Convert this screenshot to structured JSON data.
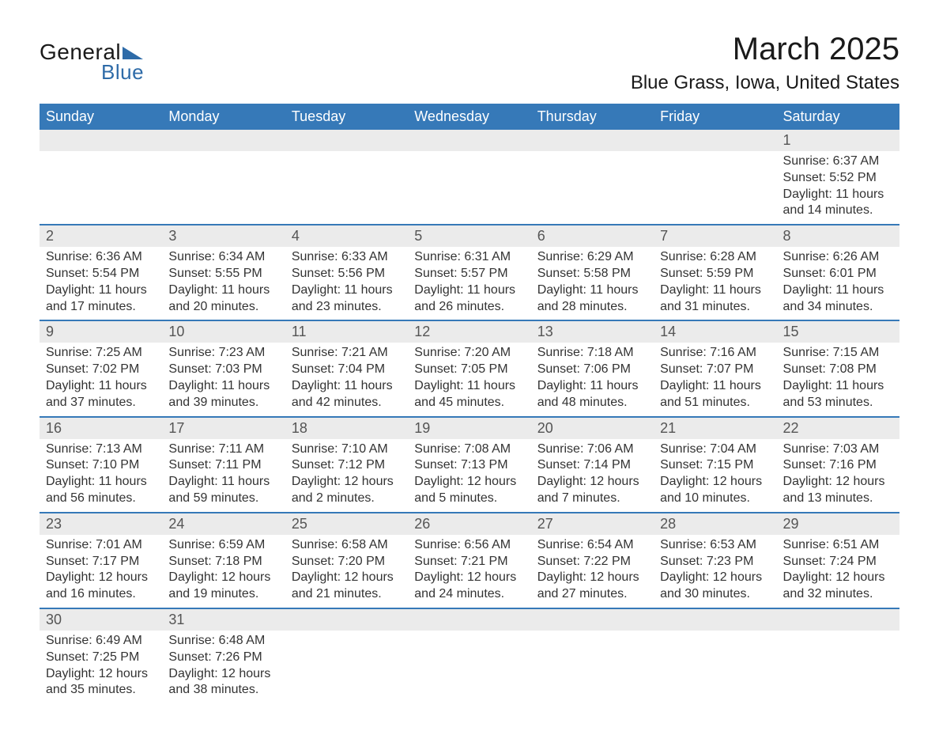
{
  "brand": {
    "general": "General",
    "blue": "Blue"
  },
  "title": "March 2025",
  "location": "Blue Grass, Iowa, United States",
  "colors": {
    "header_bg": "#3679b8",
    "header_text": "#ffffff",
    "row_divider": "#3679b8",
    "daynum_bg": "#ebebeb",
    "body_text": "#333333",
    "brand_blue": "#2e6ba8"
  },
  "typography": {
    "title_fontsize": 40,
    "location_fontsize": 24,
    "header_fontsize": 18,
    "daynum_fontsize": 18,
    "body_fontsize": 16
  },
  "days_of_week": [
    "Sunday",
    "Monday",
    "Tuesday",
    "Wednesday",
    "Thursday",
    "Friday",
    "Saturday"
  ],
  "first_weekday_index": 6,
  "days": [
    {
      "n": 1,
      "sunrise": "6:37 AM",
      "sunset": "5:52 PM",
      "daylight": "11 hours and 14 minutes."
    },
    {
      "n": 2,
      "sunrise": "6:36 AM",
      "sunset": "5:54 PM",
      "daylight": "11 hours and 17 minutes."
    },
    {
      "n": 3,
      "sunrise": "6:34 AM",
      "sunset": "5:55 PM",
      "daylight": "11 hours and 20 minutes."
    },
    {
      "n": 4,
      "sunrise": "6:33 AM",
      "sunset": "5:56 PM",
      "daylight": "11 hours and 23 minutes."
    },
    {
      "n": 5,
      "sunrise": "6:31 AM",
      "sunset": "5:57 PM",
      "daylight": "11 hours and 26 minutes."
    },
    {
      "n": 6,
      "sunrise": "6:29 AM",
      "sunset": "5:58 PM",
      "daylight": "11 hours and 28 minutes."
    },
    {
      "n": 7,
      "sunrise": "6:28 AM",
      "sunset": "5:59 PM",
      "daylight": "11 hours and 31 minutes."
    },
    {
      "n": 8,
      "sunrise": "6:26 AM",
      "sunset": "6:01 PM",
      "daylight": "11 hours and 34 minutes."
    },
    {
      "n": 9,
      "sunrise": "7:25 AM",
      "sunset": "7:02 PM",
      "daylight": "11 hours and 37 minutes."
    },
    {
      "n": 10,
      "sunrise": "7:23 AM",
      "sunset": "7:03 PM",
      "daylight": "11 hours and 39 minutes."
    },
    {
      "n": 11,
      "sunrise": "7:21 AM",
      "sunset": "7:04 PM",
      "daylight": "11 hours and 42 minutes."
    },
    {
      "n": 12,
      "sunrise": "7:20 AM",
      "sunset": "7:05 PM",
      "daylight": "11 hours and 45 minutes."
    },
    {
      "n": 13,
      "sunrise": "7:18 AM",
      "sunset": "7:06 PM",
      "daylight": "11 hours and 48 minutes."
    },
    {
      "n": 14,
      "sunrise": "7:16 AM",
      "sunset": "7:07 PM",
      "daylight": "11 hours and 51 minutes."
    },
    {
      "n": 15,
      "sunrise": "7:15 AM",
      "sunset": "7:08 PM",
      "daylight": "11 hours and 53 minutes."
    },
    {
      "n": 16,
      "sunrise": "7:13 AM",
      "sunset": "7:10 PM",
      "daylight": "11 hours and 56 minutes."
    },
    {
      "n": 17,
      "sunrise": "7:11 AM",
      "sunset": "7:11 PM",
      "daylight": "11 hours and 59 minutes."
    },
    {
      "n": 18,
      "sunrise": "7:10 AM",
      "sunset": "7:12 PM",
      "daylight": "12 hours and 2 minutes."
    },
    {
      "n": 19,
      "sunrise": "7:08 AM",
      "sunset": "7:13 PM",
      "daylight": "12 hours and 5 minutes."
    },
    {
      "n": 20,
      "sunrise": "7:06 AM",
      "sunset": "7:14 PM",
      "daylight": "12 hours and 7 minutes."
    },
    {
      "n": 21,
      "sunrise": "7:04 AM",
      "sunset": "7:15 PM",
      "daylight": "12 hours and 10 minutes."
    },
    {
      "n": 22,
      "sunrise": "7:03 AM",
      "sunset": "7:16 PM",
      "daylight": "12 hours and 13 minutes."
    },
    {
      "n": 23,
      "sunrise": "7:01 AM",
      "sunset": "7:17 PM",
      "daylight": "12 hours and 16 minutes."
    },
    {
      "n": 24,
      "sunrise": "6:59 AM",
      "sunset": "7:18 PM",
      "daylight": "12 hours and 19 minutes."
    },
    {
      "n": 25,
      "sunrise": "6:58 AM",
      "sunset": "7:20 PM",
      "daylight": "12 hours and 21 minutes."
    },
    {
      "n": 26,
      "sunrise": "6:56 AM",
      "sunset": "7:21 PM",
      "daylight": "12 hours and 24 minutes."
    },
    {
      "n": 27,
      "sunrise": "6:54 AM",
      "sunset": "7:22 PM",
      "daylight": "12 hours and 27 minutes."
    },
    {
      "n": 28,
      "sunrise": "6:53 AM",
      "sunset": "7:23 PM",
      "daylight": "12 hours and 30 minutes."
    },
    {
      "n": 29,
      "sunrise": "6:51 AM",
      "sunset": "7:24 PM",
      "daylight": "12 hours and 32 minutes."
    },
    {
      "n": 30,
      "sunrise": "6:49 AM",
      "sunset": "7:25 PM",
      "daylight": "12 hours and 35 minutes."
    },
    {
      "n": 31,
      "sunrise": "6:48 AM",
      "sunset": "7:26 PM",
      "daylight": "12 hours and 38 minutes."
    }
  ],
  "labels": {
    "sunrise_prefix": "Sunrise: ",
    "sunset_prefix": "Sunset: ",
    "daylight_prefix": "Daylight: "
  }
}
